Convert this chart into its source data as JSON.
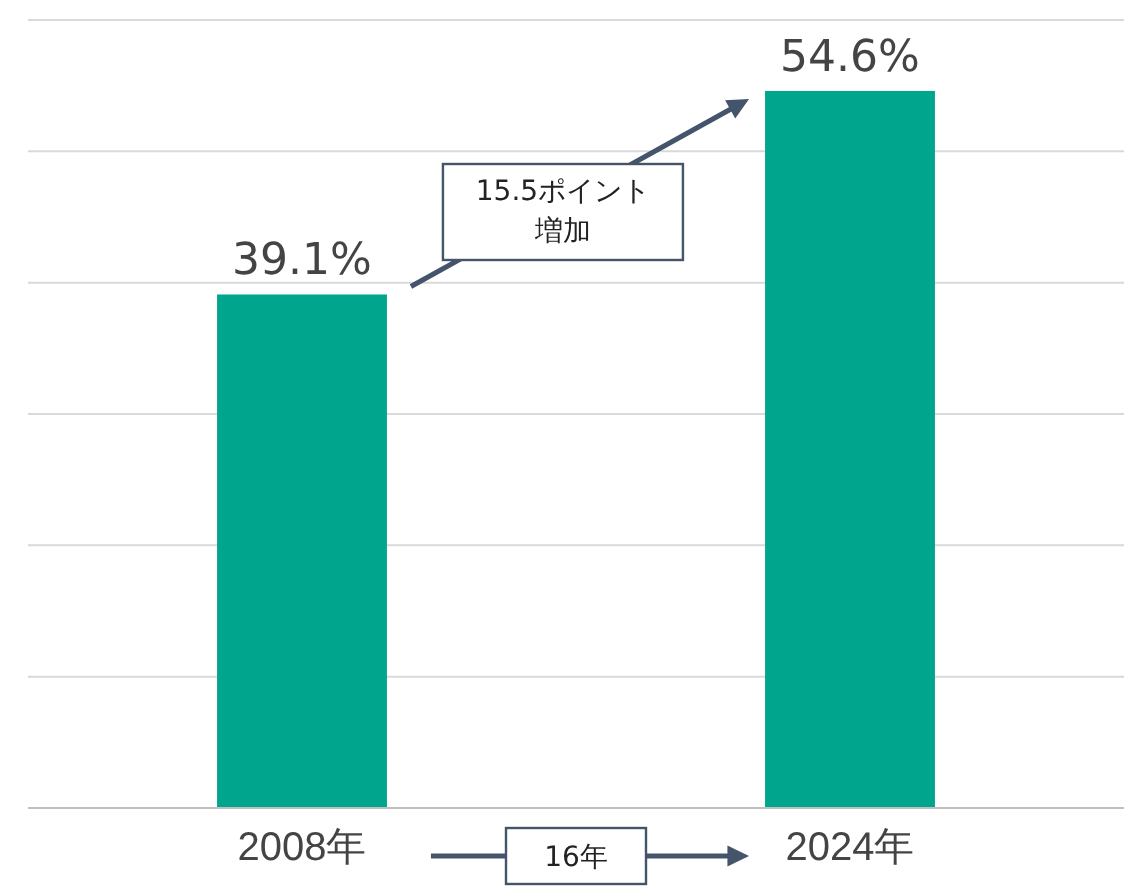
{
  "chart_data": {
    "type": "bar",
    "categories": [
      "2008年",
      "2024年"
    ],
    "values": [
      39.1,
      54.6
    ],
    "color": "#00a58d",
    "data_labels": true,
    "value_labels": [
      "39.1%",
      "54.6%"
    ],
    "ylim": [
      0,
      60
    ],
    "yticks": [
      {
        "value": 0,
        "label": null
      },
      {
        "value": 10,
        "label": null
      },
      {
        "value": 20,
        "label": null
      },
      {
        "value": 30,
        "label": null
      },
      {
        "value": 40,
        "label": null
      },
      {
        "value": 50,
        "label": null
      },
      {
        "value": 60,
        "label": null
      }
    ],
    "grid": "y",
    "tick_labels": "x",
    "annotations": [
      "15.5ポイント増加",
      "16年"
    ]
  }
}
